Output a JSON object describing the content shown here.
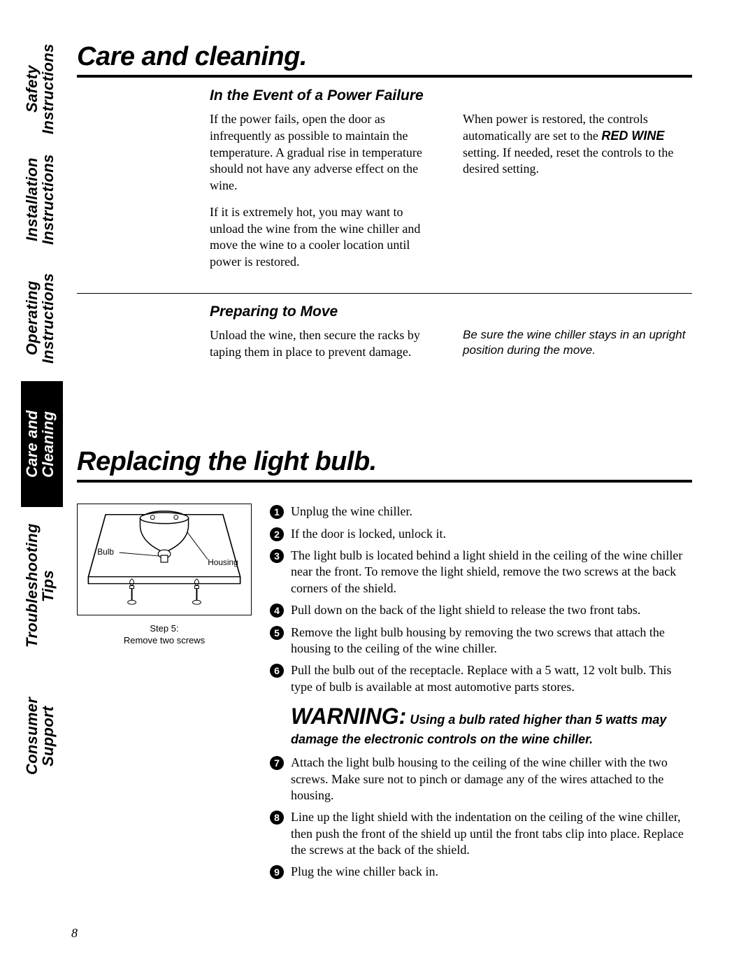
{
  "sidebar": {
    "items": [
      {
        "label": "Safety Instructions",
        "active": false
      },
      {
        "label": "Installation\nInstructions",
        "active": false
      },
      {
        "label": "Operating\nInstructions",
        "active": false
      },
      {
        "label": "Care and Cleaning",
        "active": true
      },
      {
        "label": "Troubleshooting Tips",
        "active": false
      },
      {
        "label": "Consumer Support",
        "active": false
      }
    ],
    "heights": [
      155,
      160,
      180,
      180,
      225,
      205
    ]
  },
  "section1": {
    "title": "Care and cleaning.",
    "sub1": {
      "heading": "In the Event of a Power Failure",
      "col1_p1": "If the power fails, open the door as infrequently as possible to maintain the temperature. A gradual rise in temperature should not have any adverse effect on the wine.",
      "col1_p2": "If it is extremely hot, you may want to unload the wine from the wine chiller and move the wine to a cooler location until power is restored.",
      "col2_p1_a": "When power is restored, the controls automatically are set to the ",
      "col2_p1_bold": "RED WINE",
      "col2_p1_b": " setting. If needed, reset the controls to the desired setting."
    },
    "sub2": {
      "heading": "Preparing to Move",
      "col1": "Unload the wine, then secure the racks by taping them in place to prevent damage.",
      "col2": "Be sure the wine chiller stays in an upright position during the move."
    }
  },
  "section2": {
    "title": "Replacing the light bulb.",
    "diagram": {
      "label_bulb": "Bulb",
      "label_housing": "Housing",
      "caption_l1": "Step 5:",
      "caption_l2": "Remove two screws"
    },
    "steps": [
      "Unplug the wine chiller.",
      "If the door is locked, unlock it.",
      "The light bulb is located behind a light shield in the ceiling of the wine chiller near the front. To remove the light shield, remove the two screws at the back corners of the shield.",
      "Pull down on the back of the light shield to release the two front tabs.",
      "Remove the light bulb housing by removing the two screws that attach the housing to the ceiling of the wine chiller.",
      "Pull the bulb out of the receptacle. Replace with a 5 watt, 12 volt bulb. This type of bulb is available at most automotive parts stores."
    ],
    "warning": {
      "lead": "WARNING:",
      "text": " Using a bulb rated higher than 5 watts may damage the electronic controls on the wine chiller."
    },
    "steps2": [
      "Attach the light bulb housing to the ceiling of the wine chiller with the two screws. Make sure not to pinch or damage any of the wires attached to the housing.",
      "Line up the light shield with the indentation on the ceiling of the wine chiller, then push the front of the shield up until the front tabs clip into place. Replace the screws at the back of the shield.",
      "Plug the wine chiller back in."
    ]
  },
  "page_number": "8"
}
